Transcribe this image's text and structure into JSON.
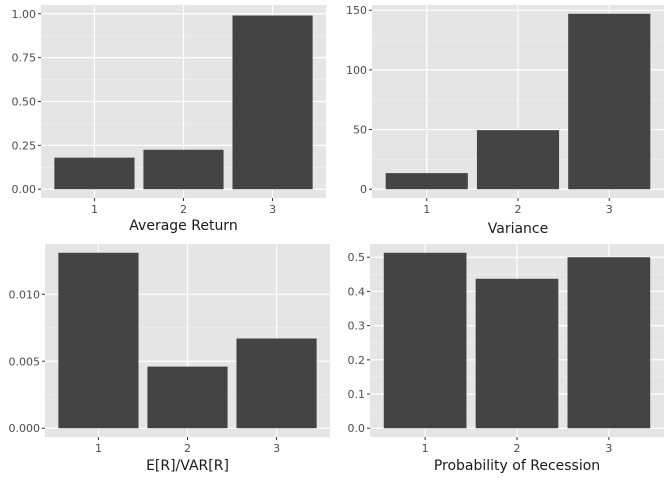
{
  "colors": {
    "panel_background": "#e5e5e5",
    "grid_major": "#ffffff",
    "grid_minor": "#f2f2f2",
    "bar_fill": "#444444",
    "tick_text": "#4d4d4d",
    "axis_title": "#1a1a1a"
  },
  "chart_data": [
    {
      "type": "bar",
      "categories": [
        "1",
        "2",
        "3"
      ],
      "values": [
        0.18,
        0.225,
        0.99
      ],
      "xlabel": "Average Return",
      "ylabel": "",
      "ylim": [
        -0.05,
        1.05
      ],
      "yticks": [
        0.0,
        0.25,
        0.5,
        0.75,
        1.0
      ],
      "ytick_labels": [
        "0.00",
        "0.25",
        "0.50",
        "0.75",
        "1.00"
      ],
      "grid": true
    },
    {
      "type": "bar",
      "categories": [
        "1",
        "2",
        "3"
      ],
      "values": [
        13.5,
        49.5,
        147
      ],
      "xlabel": "Variance",
      "ylabel": "",
      "ylim": [
        -7.35,
        154.35
      ],
      "yticks": [
        0,
        50,
        100,
        150
      ],
      "ytick_labels": [
        "0",
        "50",
        "100",
        "150"
      ],
      "grid": true
    },
    {
      "type": "bar",
      "categories": [
        "1",
        "2",
        "3"
      ],
      "values": [
        0.0131,
        0.0046,
        0.0067
      ],
      "xlabel": "E[R]/VAR[R]",
      "ylabel": "",
      "ylim": [
        -0.000655,
        0.013755
      ],
      "yticks": [
        0.0,
        0.005,
        0.01
      ],
      "ytick_labels": [
        "0.000",
        "0.005",
        "0.010"
      ],
      "grid": true
    },
    {
      "type": "bar",
      "categories": [
        "1",
        "2",
        "3"
      ],
      "values": [
        0.513,
        0.437,
        0.5
      ],
      "xlabel": "Probability of Recession",
      "ylabel": "",
      "ylim": [
        -0.02565,
        0.53865
      ],
      "yticks": [
        0.0,
        0.1,
        0.2,
        0.3,
        0.4,
        0.5
      ],
      "ytick_labels": [
        "0.0",
        "0.1",
        "0.2",
        "0.3",
        "0.4",
        "0.5"
      ],
      "grid": true
    }
  ]
}
